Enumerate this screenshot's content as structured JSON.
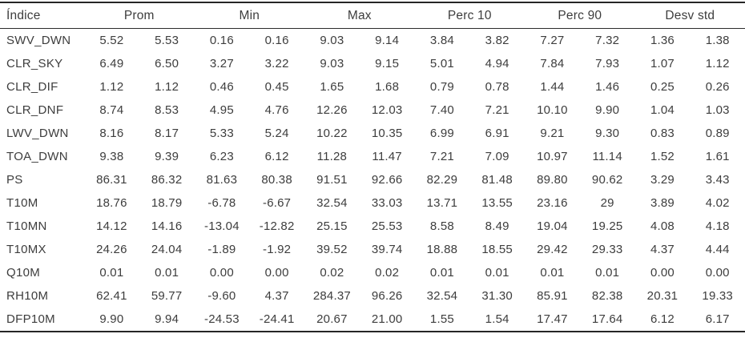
{
  "colors": {
    "text": "#3d3d3d",
    "border": "#262626",
    "background": "#ffffff"
  },
  "table": {
    "index_label": "Índice",
    "groups": [
      "Prom",
      "Min",
      "Max",
      "Perc 10",
      "Perc 90",
      "Desv std"
    ],
    "rows": [
      {
        "index": "SWV_DWN",
        "values": [
          "5.52",
          "5.53",
          "0.16",
          "0.16",
          "9.03",
          "9.14",
          "3.84",
          "3.82",
          "7.27",
          "7.32",
          "1.36",
          "1.38"
        ]
      },
      {
        "index": "CLR_SKY",
        "values": [
          "6.49",
          "6.50",
          "3.27",
          "3.22",
          "9.03",
          "9.15",
          "5.01",
          "4.94",
          "7.84",
          "7.93",
          "1.07",
          "1.12"
        ]
      },
      {
        "index": "CLR_DIF",
        "values": [
          "1.12",
          "1.12",
          "0.46",
          "0.45",
          "1.65",
          "1.68",
          "0.79",
          "0.78",
          "1.44",
          "1.46",
          "0.25",
          "0.26"
        ]
      },
      {
        "index": "CLR_DNF",
        "values": [
          "8.74",
          "8.53",
          "4.95",
          "4.76",
          "12.26",
          "12.03",
          "7.40",
          "7.21",
          "10.10",
          "9.90",
          "1.04",
          "1.03"
        ]
      },
      {
        "index": "LWV_DWN",
        "values": [
          "8.16",
          "8.17",
          "5.33",
          "5.24",
          "10.22",
          "10.35",
          "6.99",
          "6.91",
          "9.21",
          "9.30",
          "0.83",
          "0.89"
        ]
      },
      {
        "index": "TOA_DWN",
        "values": [
          "9.38",
          "9.39",
          "6.23",
          "6.12",
          "11.28",
          "11.47",
          "7.21",
          "7.09",
          "10.97",
          "11.14",
          "1.52",
          "1.61"
        ]
      },
      {
        "index": "PS",
        "values": [
          "86.31",
          "86.32",
          "81.63",
          "80.38",
          "91.51",
          "92.66",
          "82.29",
          "81.48",
          "89.80",
          "90.62",
          "3.29",
          "3.43"
        ]
      },
      {
        "index": "T10M",
        "values": [
          "18.76",
          "18.79",
          "-6.78",
          "-6.67",
          "32.54",
          "33.03",
          "13.71",
          "13.55",
          "23.16",
          "29",
          "3.89",
          "4.02"
        ]
      },
      {
        "index": "T10MN",
        "values": [
          "14.12",
          "14.16",
          "-13.04",
          "-12.82",
          "25.15",
          "25.53",
          "8.58",
          "8.49",
          "19.04",
          "19.25",
          "4.08",
          "4.18"
        ]
      },
      {
        "index": "T10MX",
        "values": [
          "24.26",
          "24.04",
          "-1.89",
          "-1.92",
          "39.52",
          "39.74",
          "18.88",
          "18.55",
          "29.42",
          "29.33",
          "4.37",
          "4.44"
        ]
      },
      {
        "index": "Q10M",
        "values": [
          "0.01",
          "0.01",
          "0.00",
          "0.00",
          "0.02",
          "0.02",
          "0.01",
          "0.01",
          "0.01",
          "0.01",
          "0.00",
          "0.00"
        ]
      },
      {
        "index": "RH10M",
        "values": [
          "62.41",
          "59.77",
          "-9.60",
          "4.37",
          "284.37",
          "96.26",
          "32.54",
          "31.30",
          "85.91",
          "82.38",
          "20.31",
          "19.33"
        ]
      },
      {
        "index": "DFP10M",
        "values": [
          "9.90",
          "9.94",
          "-24.53",
          "-24.41",
          "20.67",
          "21.00",
          "1.55",
          "1.54",
          "17.47",
          "17.64",
          "6.12",
          "6.17"
        ]
      }
    ]
  }
}
